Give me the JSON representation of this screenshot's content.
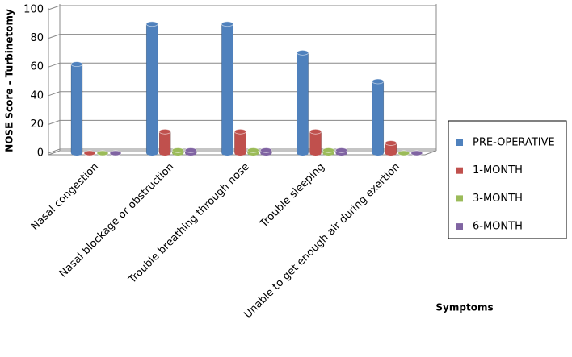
{
  "chart_data": {
    "type": "bar3d",
    "y_label": "NOSE Score - Turbinetomy",
    "x_label": "Symptoms",
    "categories": [
      "Nasal congestion",
      "Nasal blockage or obstruction",
      "Trouble breathing through nose",
      "Trouble sleeping",
      "Unable to get enough air during exertion"
    ],
    "series": [
      {
        "name": "PRE-OPERATIVE",
        "color": "#4f81bd",
        "values": [
          62,
          90,
          90,
          70,
          50
        ]
      },
      {
        "name": "1-MONTH",
        "color": "#c0504d",
        "values": [
          0,
          15,
          15,
          15,
          7
        ]
      },
      {
        "name": "3-MONTH",
        "color": "#9bbb59",
        "values": [
          0,
          2,
          2,
          2,
          0
        ]
      },
      {
        "name": "6-MONTH",
        "color": "#8064a2",
        "values": [
          0,
          2,
          2,
          2,
          0
        ]
      }
    ],
    "ylim": [
      0,
      100
    ],
    "yticks": [
      0,
      20,
      40,
      60,
      80,
      100
    ],
    "legend": "right"
  }
}
